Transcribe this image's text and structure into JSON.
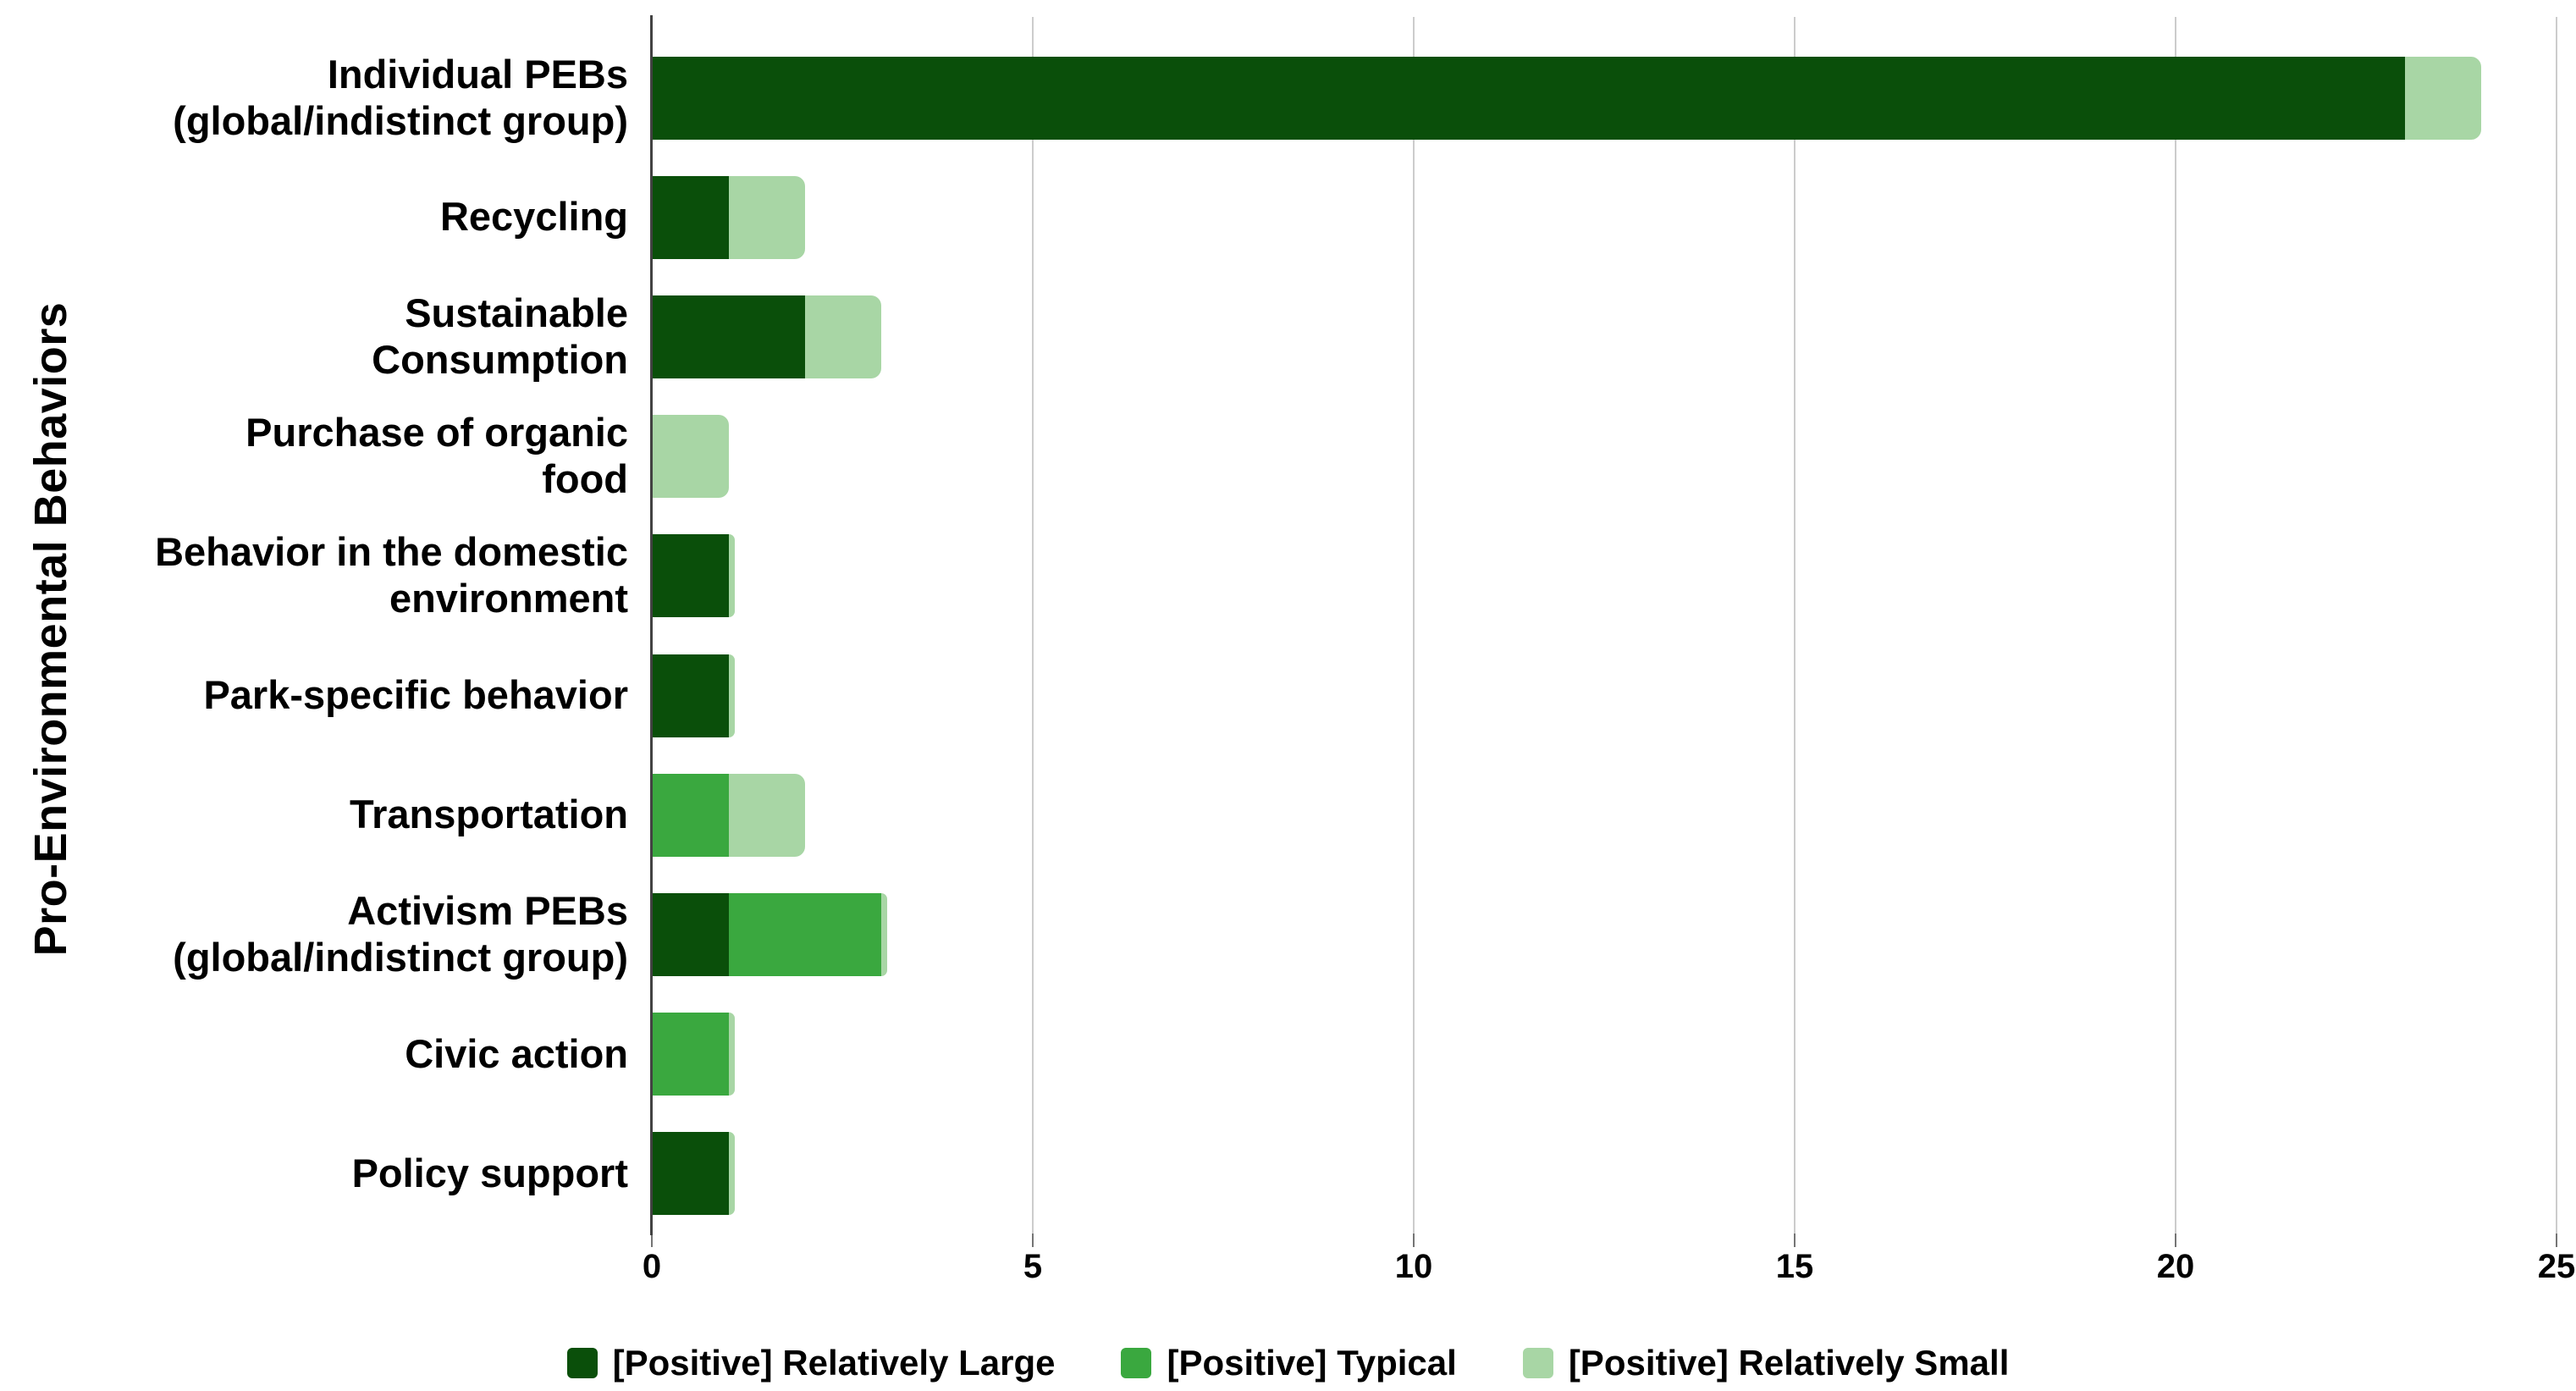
{
  "chart_data": {
    "type": "bar",
    "orientation": "horizontal",
    "stacked": true,
    "title": "",
    "xlabel": "",
    "ylabel": "Pro-Environmental Behaviors",
    "xlim": [
      0,
      25
    ],
    "x_ticks": [
      0,
      5,
      10,
      15,
      20,
      25
    ],
    "grid": "vertical",
    "legend_position": "bottom",
    "categories": [
      "Individual PEBs (global/indistinct group)",
      "Recycling",
      "Sustainable Consumption",
      "Purchase of organic food",
      "Behavior in the domestic environment",
      "Park-specific behavior",
      "Transportation",
      "Activism PEBs (global/indistinct group)",
      "Civic action",
      "Policy support"
    ],
    "category_lines": [
      [
        "Individual PEBs",
        "(global/indistinct group)"
      ],
      [
        "Recycling"
      ],
      [
        "Sustainable",
        "Consumption"
      ],
      [
        "Purchase of organic",
        "food"
      ],
      [
        "Behavior in the domestic",
        "environment"
      ],
      [
        "Park-specific behavior"
      ],
      [
        "Transportation"
      ],
      [
        "Activism PEBs",
        "(global/indistinct group)"
      ],
      [
        "Civic action"
      ],
      [
        "Policy support"
      ]
    ],
    "series": [
      {
        "name": "[Positive] Relatively Large",
        "color": "#0a4f0a",
        "values": [
          23,
          1,
          2,
          0,
          1,
          1,
          0,
          1,
          0,
          1
        ]
      },
      {
        "name": "[Positive] Typical",
        "color": "#3aa83f",
        "values": [
          0,
          0,
          0,
          0,
          0,
          0,
          1,
          2,
          1,
          0
        ]
      },
      {
        "name": "[Positive] Relatively Small",
        "color": "#a8d6a5",
        "values": [
          1,
          1,
          1,
          1,
          0,
          0,
          1,
          0,
          0,
          0
        ]
      }
    ],
    "colors": {
      "axis": "#424242",
      "tick": "#757575",
      "grid": "#cccccc",
      "text": "#000000",
      "background": "#ffffff"
    }
  }
}
